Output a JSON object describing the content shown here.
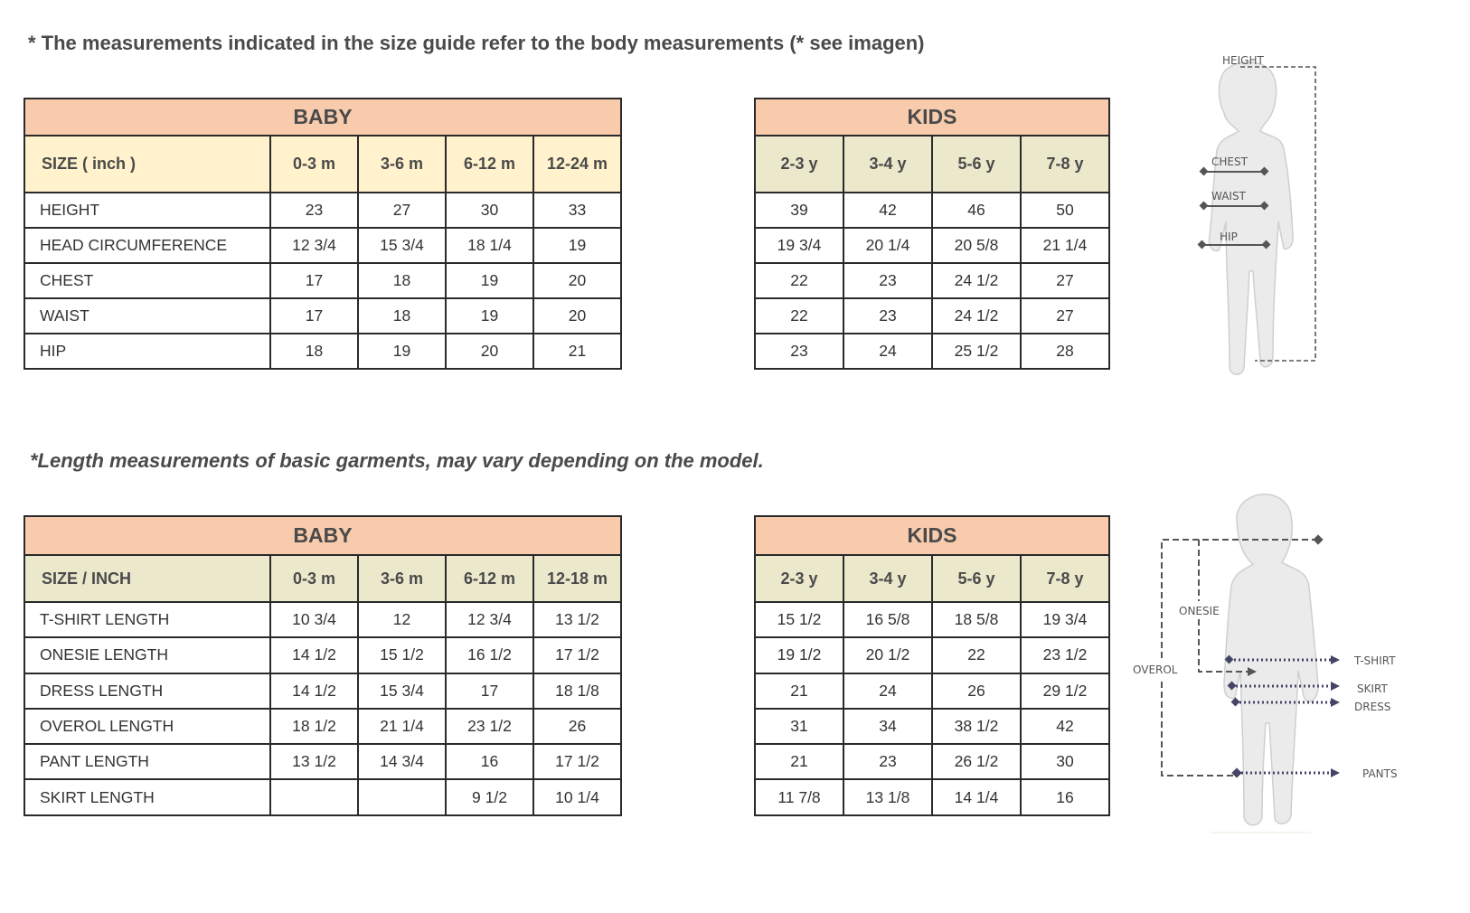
{
  "notes": {
    "body": "* The measurements indicated in the size guide refer to the body measurements (* see imagen)",
    "garments": "*Length measurements of basic garments, may vary depending on the model."
  },
  "colors": {
    "group_header": "#f8cbad",
    "size_row_body": "#fff2cc",
    "size_row_other": "#ebe8cc",
    "border": "#2a2a2a"
  },
  "body_tables": {
    "baby": {
      "title": "BABY",
      "size_label": "SIZE  ( inch )",
      "sizes": [
        "0-3 m",
        "3-6 m",
        "6-12 m",
        "12-24 m"
      ],
      "rows": [
        {
          "label": "HEIGHT",
          "values": [
            "23",
            "27",
            "30",
            "33"
          ]
        },
        {
          "label": "HEAD CIRCUMFERENCE",
          "values": [
            "12 3/4",
            "15 3/4",
            "18 1/4",
            "19"
          ]
        },
        {
          "label": "CHEST",
          "values": [
            "17",
            "18",
            "19",
            "20"
          ]
        },
        {
          "label": "WAIST",
          "values": [
            "17",
            "18",
            "19",
            "20"
          ]
        },
        {
          "label": "HIP",
          "values": [
            "18",
            "19",
            "20",
            "21"
          ]
        }
      ]
    },
    "kids": {
      "title": "KIDS",
      "sizes": [
        "2-3 y",
        "3-4 y",
        "5-6 y",
        "7-8 y"
      ],
      "rows": [
        {
          "values": [
            "39",
            "42",
            "46",
            "50"
          ]
        },
        {
          "values": [
            "19 3/4",
            "20 1/4",
            "20 5/8",
            "21 1/4"
          ]
        },
        {
          "values": [
            "22",
            "23",
            "24 1/2",
            "27"
          ]
        },
        {
          "values": [
            "22",
            "23",
            "24 1/2",
            "27"
          ]
        },
        {
          "values": [
            "23",
            "24",
            "25 1/2",
            "28"
          ]
        }
      ]
    }
  },
  "garment_tables": {
    "baby": {
      "title": "BABY",
      "size_label": "SIZE   /   INCH",
      "sizes": [
        "0-3 m",
        "3-6 m",
        "6-12 m",
        "12-18 m"
      ],
      "rows": [
        {
          "label": "T-SHIRT  LENGTH",
          "values": [
            "10 3/4",
            "12",
            "12 3/4",
            "13 1/2"
          ]
        },
        {
          "label": "ONESIE  LENGTH",
          "values": [
            "14 1/2",
            "15 1/2",
            "16 1/2",
            "17 1/2"
          ]
        },
        {
          "label": "DRESS  LENGTH",
          "values": [
            "14 1/2",
            "15 3/4",
            "17",
            "18 1/8"
          ]
        },
        {
          "label": "OVEROL  LENGTH",
          "values": [
            "18 1/2",
            "21 1/4",
            "23 1/2",
            "26"
          ]
        },
        {
          "label": "PANT  LENGTH",
          "values": [
            "13 1/2",
            "14 3/4",
            "16",
            "17 1/2"
          ]
        },
        {
          "label": "SKIRT  LENGTH",
          "values": [
            "",
            "",
            "9 1/2",
            "10 1/4"
          ]
        }
      ]
    },
    "kids": {
      "title": "KIDS",
      "sizes": [
        "2-3 y",
        "3-4 y",
        "5-6 y",
        "7-8 y"
      ],
      "rows": [
        {
          "values": [
            "15 1/2",
            "16 5/8",
            "18 5/8",
            "19 3/4"
          ]
        },
        {
          "values": [
            "19 1/2",
            "20 1/2",
            "22",
            "23 1/2"
          ]
        },
        {
          "values": [
            "21",
            "24",
            "26",
            "29 1/2"
          ]
        },
        {
          "values": [
            "31",
            "34",
            "38 1/2",
            "42"
          ]
        },
        {
          "values": [
            "21",
            "23",
            "26 1/2",
            "30"
          ]
        },
        {
          "values": [
            "11 7/8",
            "13  1/8",
            "14 1/4",
            "16"
          ]
        }
      ]
    }
  },
  "figures": {
    "body": {
      "labels": {
        "height": "HEIGHT",
        "chest": "CHEST",
        "waist": "WAIST",
        "hip": "HIP"
      }
    },
    "garments": {
      "labels": {
        "onesie": "ONESIE",
        "overol": "OVEROL",
        "tshirt": "T-SHIRT",
        "skirt": "SKIRT",
        "dress": "DRESS",
        "pants": "PANTS"
      }
    }
  }
}
